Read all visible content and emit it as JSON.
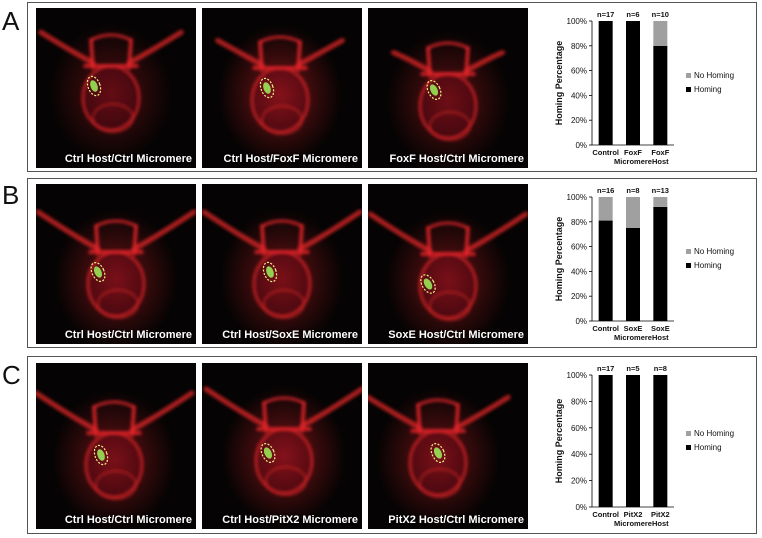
{
  "figure": {
    "panels": [
      {
        "letter": "A",
        "captions": [
          "Ctrl Host/Ctrl Micromere",
          "Ctrl Host/FoxF Micromere",
          "FoxF Host/Ctrl Micromere"
        ]
      },
      {
        "letter": "B",
        "captions": [
          "Ctrl Host/Ctrl Micromere",
          "Ctrl Host/SoxE Micromere",
          "SoxE Host/Ctrl Micromere"
        ]
      },
      {
        "letter": "C",
        "captions": [
          "Ctrl Host/Ctrl Micromere",
          "Ctrl Host/PitX2 Micromere",
          "PitX2 Host/Ctrl Micromere"
        ]
      }
    ]
  },
  "colors": {
    "homing": "#000000",
    "no_homing": "#a0a0a0",
    "embryo_red": "#e8252a",
    "micromere_green": "#9ef25a",
    "outline_yellow": "#f5f08a"
  },
  "chart_data": [
    {
      "type": "bar",
      "stacked": true,
      "ylabel": "Homing Percentage",
      "yticks": [
        "0%",
        "20%",
        "40%",
        "60%",
        "80%",
        "100%"
      ],
      "ylim": [
        0,
        100
      ],
      "categories": [
        [
          "Control"
        ],
        [
          "FoxF",
          "Micromere"
        ],
        [
          "FoxF",
          "Host"
        ]
      ],
      "counts": [
        "n=17",
        "n=6",
        "n=10"
      ],
      "series": [
        {
          "name": "Homing",
          "values": [
            100,
            100,
            80
          ]
        },
        {
          "name": "No Homing",
          "values": [
            0,
            0,
            20
          ]
        }
      ],
      "legend": [
        "No Homing",
        "Homing"
      ],
      "legend_position": "right"
    },
    {
      "type": "bar",
      "stacked": true,
      "ylabel": "Homing Percentage",
      "yticks": [
        "0%",
        "20%",
        "40%",
        "60%",
        "80%",
        "100%"
      ],
      "ylim": [
        0,
        100
      ],
      "categories": [
        [
          "Control"
        ],
        [
          "SoxE",
          "Micromere"
        ],
        [
          "SoxE",
          "Host"
        ]
      ],
      "counts": [
        "n=16",
        "n=8",
        "n=13"
      ],
      "series": [
        {
          "name": "Homing",
          "values": [
            81,
            75,
            92
          ]
        },
        {
          "name": "No Homing",
          "values": [
            19,
            25,
            8
          ]
        }
      ],
      "legend": [
        "No Homing",
        "Homing"
      ],
      "legend_position": "right"
    },
    {
      "type": "bar",
      "stacked": true,
      "ylabel": "Homing Percentage",
      "yticks": [
        "0%",
        "20%",
        "40%",
        "60%",
        "80%",
        "100%"
      ],
      "ylim": [
        0,
        100
      ],
      "categories": [
        [
          "Control"
        ],
        [
          "PitX2",
          "Micromere"
        ],
        [
          "PitX2",
          "Host"
        ]
      ],
      "counts": [
        "n=17",
        "n=5",
        "n=8"
      ],
      "series": [
        {
          "name": "Homing",
          "values": [
            100,
            100,
            100
          ]
        },
        {
          "name": "No Homing",
          "values": [
            0,
            0,
            0
          ]
        }
      ],
      "legend": [
        "No Homing",
        "Homing"
      ],
      "legend_position": "right"
    }
  ]
}
